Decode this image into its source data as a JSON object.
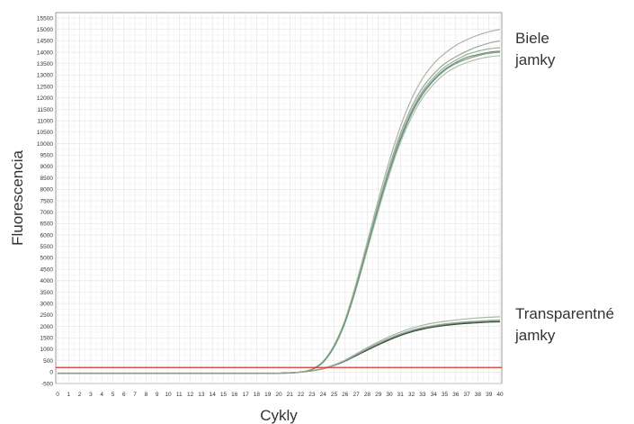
{
  "chart_data": {
    "type": "line",
    "xlabel": "Cykly",
    "ylabel": "Fluorescencia",
    "xlim": [
      0,
      40
    ],
    "ylim": [
      -500,
      15500
    ],
    "x_ticks": [
      0,
      1,
      2,
      3,
      4,
      5,
      6,
      7,
      8,
      9,
      10,
      11,
      12,
      13,
      14,
      15,
      16,
      17,
      18,
      19,
      20,
      21,
      22,
      23,
      24,
      25,
      26,
      27,
      28,
      29,
      30,
      31,
      32,
      33,
      34,
      35,
      36,
      37,
      38,
      39,
      40
    ],
    "y_ticks": [
      -500,
      0,
      500,
      1000,
      1500,
      2000,
      2500,
      3000,
      3500,
      4000,
      4500,
      5000,
      5500,
      6000,
      6500,
      7000,
      7500,
      8000,
      8500,
      9000,
      9500,
      10000,
      10500,
      11000,
      11500,
      12000,
      12500,
      13000,
      13500,
      14000,
      14500,
      15000,
      15500
    ],
    "grid": true,
    "threshold": {
      "value": 200,
      "color": "#d9362b"
    },
    "groups": [
      {
        "label_lines": [
          "Biele",
          "jamky"
        ],
        "colors": [
          "#9aa89a",
          "#a9b4a9",
          "#8f9c8f",
          "#b3bcb3",
          "#a0ab9f",
          "#5f9a6c"
        ],
        "series": [
          {
            "values": [
              -50,
              -50,
              -50,
              -50,
              -50,
              -50,
              -50,
              -50,
              -50,
              -50,
              -50,
              -50,
              -50,
              -50,
              -50,
              -50,
              -50,
              -50,
              -50,
              -50,
              -50,
              -40,
              0,
              120,
              450,
              1150,
              2250,
              3800,
              5550,
              7350,
              9000,
              10450,
              11600,
              12450,
              13050,
              13500,
              13800,
              14050,
              14250,
              14400,
              14500
            ]
          },
          {
            "values": [
              -50,
              -50,
              -50,
              -50,
              -50,
              -50,
              -50,
              -50,
              -50,
              -50,
              -50,
              -50,
              -50,
              -50,
              -50,
              -50,
              -50,
              -50,
              -50,
              -50,
              -50,
              -40,
              0,
              130,
              470,
              1180,
              2300,
              3900,
              5700,
              7550,
              9250,
              10750,
              11950,
              12850,
              13500,
              13950,
              14300,
              14550,
              14750,
              14900,
              15000
            ]
          },
          {
            "values": [
              -50,
              -50,
              -50,
              -50,
              -50,
              -50,
              -50,
              -50,
              -50,
              -50,
              -50,
              -50,
              -50,
              -50,
              -50,
              -50,
              -50,
              -50,
              -50,
              -50,
              -50,
              -40,
              0,
              110,
              430,
              1100,
              2180,
              3700,
              5400,
              7150,
              8750,
              10150,
              11300,
              12150,
              12750,
              13200,
              13500,
              13700,
              13850,
              13950,
              14000
            ]
          },
          {
            "values": [
              -50,
              -50,
              -50,
              -50,
              -50,
              -50,
              -50,
              -50,
              -50,
              -50,
              -50,
              -50,
              -50,
              -50,
              -50,
              -50,
              -50,
              -50,
              -50,
              -50,
              -50,
              -40,
              0,
              110,
              420,
              1080,
              2150,
              3650,
              5350,
              7050,
              8650,
              10050,
              11150,
              12000,
              12600,
              13050,
              13350,
              13550,
              13700,
              13800,
              13850
            ]
          },
          {
            "values": [
              -50,
              -50,
              -50,
              -50,
              -50,
              -50,
              -50,
              -50,
              -50,
              -50,
              -50,
              -50,
              -50,
              -50,
              -50,
              -50,
              -50,
              -50,
              -50,
              -50,
              -50,
              -40,
              0,
              120,
              440,
              1130,
              2220,
              3750,
              5480,
              7250,
              8880,
              10300,
              11450,
              12300,
              12900,
              13350,
              13650,
              13900,
              14050,
              14150,
              14200
            ]
          },
          {
            "values": [
              -50,
              -50,
              -50,
              -50,
              -50,
              -50,
              -50,
              -50,
              -50,
              -50,
              -50,
              -50,
              -50,
              -50,
              -50,
              -50,
              -50,
              -50,
              -50,
              -50,
              -50,
              -40,
              0,
              115,
              435,
              1120,
              2200,
              3720,
              5450,
              7200,
              8800,
              10200,
              11350,
              12200,
              12800,
              13250,
              13550,
              13780,
              13900,
              14000,
              14050
            ]
          }
        ]
      },
      {
        "label_lines": [
          "Transparentné",
          "jamky"
        ],
        "colors": [
          "#5f9a6c",
          "#a9b4a9",
          "#3d4a3f",
          "#9aa89a"
        ],
        "series": [
          {
            "values": [
              -60,
              -60,
              -60,
              -60,
              -60,
              -60,
              -60,
              -60,
              -60,
              -60,
              -60,
              -60,
              -60,
              -60,
              -60,
              -60,
              -60,
              -60,
              -60,
              -60,
              -50,
              -30,
              0,
              60,
              150,
              300,
              500,
              750,
              1000,
              1230,
              1450,
              1640,
              1800,
              1920,
              2010,
              2080,
              2130,
              2170,
              2210,
              2240,
              2260
            ]
          },
          {
            "values": [
              -60,
              -60,
              -60,
              -60,
              -60,
              -60,
              -60,
              -60,
              -60,
              -60,
              -60,
              -60,
              -60,
              -60,
              -60,
              -60,
              -60,
              -60,
              -60,
              -60,
              -50,
              -30,
              0,
              60,
              160,
              320,
              530,
              800,
              1070,
              1320,
              1550,
              1750,
              1920,
              2050,
              2150,
              2220,
              2280,
              2330,
              2370,
              2400,
              2420
            ]
          },
          {
            "values": [
              -60,
              -60,
              -60,
              -60,
              -60,
              -60,
              -60,
              -60,
              -60,
              -60,
              -60,
              -60,
              -60,
              -60,
              -60,
              -60,
              -60,
              -60,
              -60,
              -60,
              -50,
              -30,
              0,
              55,
              145,
              290,
              480,
              720,
              960,
              1190,
              1410,
              1600,
              1760,
              1880,
              1970,
              2040,
              2090,
              2130,
              2160,
              2190,
              2200
            ]
          },
          {
            "values": [
              -60,
              -60,
              -60,
              -60,
              -60,
              -60,
              -60,
              -60,
              -60,
              -60,
              -60,
              -60,
              -60,
              -60,
              -60,
              -60,
              -60,
              -60,
              -60,
              -60,
              -50,
              -30,
              0,
              58,
              150,
              300,
              505,
              760,
              1020,
              1260,
              1480,
              1670,
              1830,
              1950,
              2040,
              2110,
              2160,
              2200,
              2230,
              2260,
              2280
            ]
          }
        ]
      }
    ]
  }
}
